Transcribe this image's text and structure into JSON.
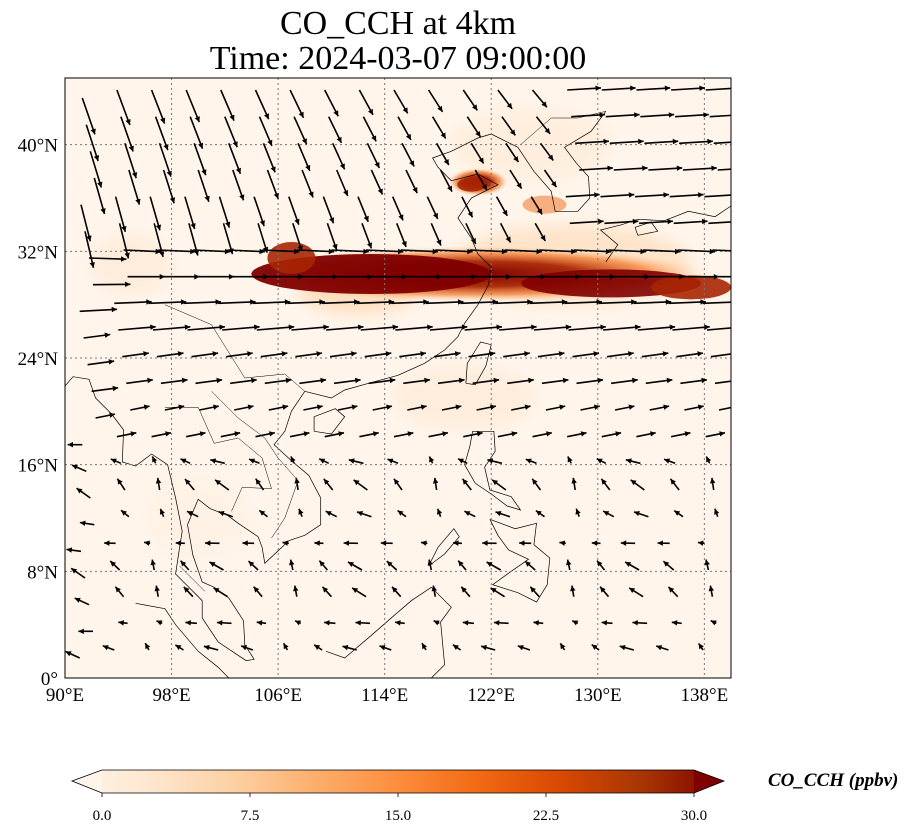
{
  "map": {
    "title_line1": "CO_CCH at 4km",
    "title_line2": "Time: 2024-03-07 09:00:00",
    "variable": "CO_CCH",
    "height": "4km",
    "time": "2024-03-07 09:00:00",
    "extent": {
      "lon_min": 90,
      "lon_max": 140,
      "lat_min": 0,
      "lat_max": 45
    },
    "lon_ticks": [
      "90°E",
      "98°E",
      "106°E",
      "114°E",
      "122°E",
      "130°E",
      "138°E"
    ],
    "lat_ticks": [
      "0°",
      "8°N",
      "16°N",
      "24°N",
      "32°N",
      "40°N"
    ],
    "gridlines": true,
    "colormap": [
      "#fff5eb",
      "#fdd7ae",
      "#fdab67",
      "#f16913",
      "#d94801",
      "#a82603",
      "#7f0000"
    ],
    "plume": [
      {
        "lat": 30.5,
        "lon_start": 104.5,
        "lon_end": 140,
        "intensity": "high"
      },
      {
        "lat": 37.5,
        "lon_start": 117,
        "lon_end": 124,
        "intensity": "high"
      }
    ],
    "vectors": "wind",
    "legend_position": "bottom"
  },
  "colorbar": {
    "label": "CO_CCH (ppbv)",
    "ticks": [
      "0.0",
      "7.5",
      "15.0",
      "22.5",
      "30.0"
    ],
    "vmin": 0.0,
    "vmax": 30.0,
    "extend": "both",
    "colors": [
      "#fff5eb",
      "#fee6ce",
      "#fdd0a2",
      "#fdae6b",
      "#fd8d3c",
      "#f16913",
      "#d94801",
      "#a63603",
      "#7f0000"
    ]
  }
}
